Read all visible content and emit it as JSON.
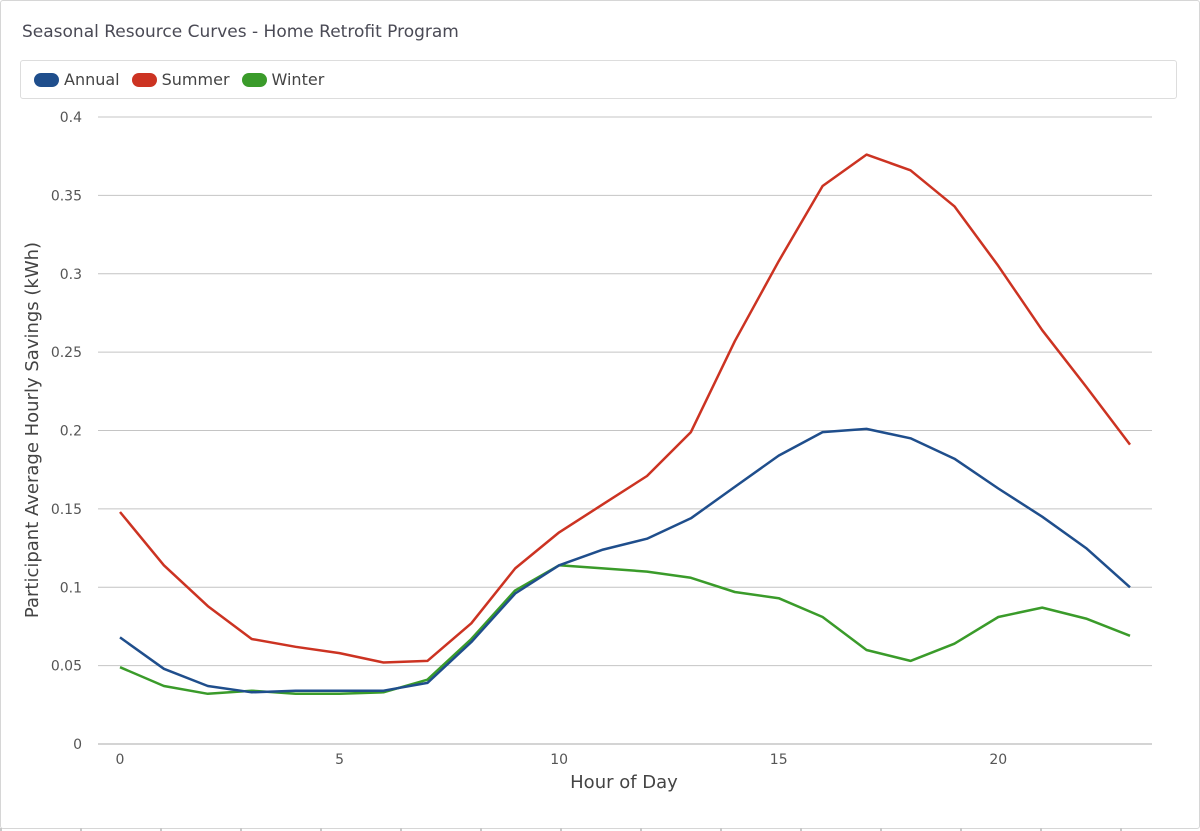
{
  "chart_data": {
    "type": "line",
    "title": "Seasonal Resource Curves - Home Retrofit Program",
    "xlabel": "Hour of Day",
    "ylabel": "Participant Average Hourly Savings (kWh)",
    "x": [
      0,
      1,
      2,
      3,
      4,
      5,
      6,
      7,
      8,
      9,
      10,
      11,
      12,
      13,
      14,
      15,
      16,
      17,
      18,
      19,
      20,
      21,
      22,
      23
    ],
    "xlim": [
      -0.5,
      23.5
    ],
    "ylim": [
      0,
      0.4
    ],
    "xticks": [
      0,
      5,
      10,
      15,
      20
    ],
    "yticks": [
      0,
      0.05,
      0.1,
      0.15,
      0.2,
      0.25,
      0.3,
      0.35,
      0.4
    ],
    "grid": "horizontal",
    "legend_position": "top",
    "series": [
      {
        "name": "Annual",
        "color": "#1f4e8c",
        "values": [
          0.068,
          0.048,
          0.037,
          0.033,
          0.034,
          0.034,
          0.034,
          0.039,
          0.065,
          0.096,
          0.114,
          0.124,
          0.131,
          0.144,
          0.164,
          0.184,
          0.199,
          0.201,
          0.195,
          0.182,
          0.163,
          0.145,
          0.125,
          0.1
        ]
      },
      {
        "name": "Summer",
        "color": "#cc3322",
        "values": [
          0.148,
          0.114,
          0.088,
          0.067,
          0.062,
          0.058,
          0.052,
          0.053,
          0.077,
          0.112,
          0.135,
          0.153,
          0.171,
          0.199,
          0.257,
          0.308,
          0.356,
          0.376,
          0.366,
          0.343,
          0.305,
          0.264,
          0.228,
          0.191
        ]
      },
      {
        "name": "Winter",
        "color": "#3a9b2a",
        "values": [
          0.049,
          0.037,
          0.032,
          0.034,
          0.032,
          0.032,
          0.033,
          0.041,
          0.067,
          0.098,
          0.114,
          0.112,
          0.11,
          0.106,
          0.097,
          0.093,
          0.081,
          0.06,
          0.053,
          0.064,
          0.081,
          0.087,
          0.08,
          0.069
        ]
      }
    ]
  }
}
